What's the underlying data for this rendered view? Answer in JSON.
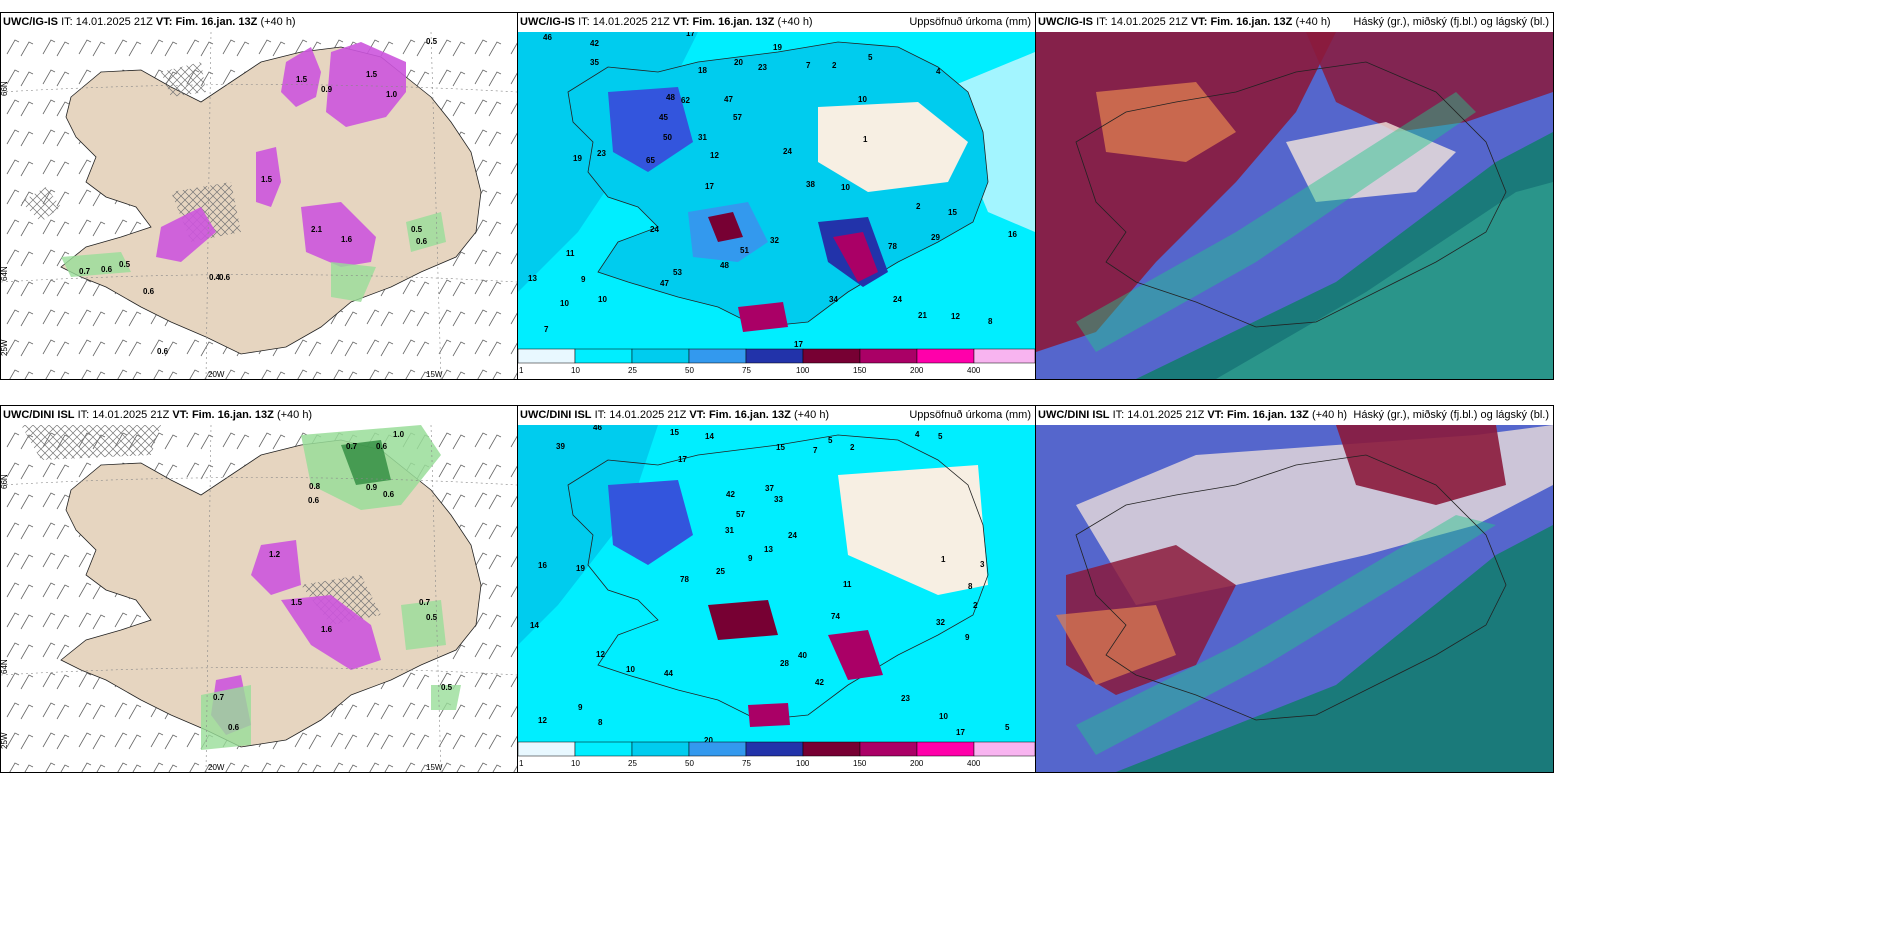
{
  "colors": {
    "land": "#e6d5c0",
    "ocean_light": "#e8f8ff",
    "cyan": "#00eeff",
    "sky": "#00ccee",
    "blue": "#3399ee",
    "medblue": "#3355dd",
    "darkblue": "#2233aa",
    "maroon": "#770033",
    "purple": "#aa0066",
    "magenta": "#ff00aa",
    "pink": "#f8b4f0",
    "precip_magenta": "#cc55dd",
    "precip_green": "#99dd99",
    "cloud_high": "#5566cc",
    "cloud_mid": "#8b1a3c",
    "cloud_low": "#1a7a7a",
    "cloud_orange": "#e08050"
  },
  "legend": {
    "ticks": [
      "1",
      "10",
      "25",
      "50",
      "75",
      "100",
      "150",
      "200",
      "400"
    ]
  },
  "rows": [
    {
      "model": "UWC/IG-IS",
      "it_label": "IT:",
      "it_value": "14.01.2025 21Z",
      "vt_label": "VT:",
      "vt_value": "Fim. 16.jan. 13Z",
      "lead": "(+40 h)",
      "precip_title": "Uppsöfnuð úrkoma (mm)",
      "cloud_title": "Háský (gr.), miðský (fj.bl.) og lágský (bl.)",
      "lat_labels": [
        "66N",
        "64N",
        "25W"
      ],
      "lon_labels": [
        "20W",
        "15W"
      ],
      "panel1_values": [
        "0.5",
        "1.5",
        "1.0",
        "1.5",
        "0.9",
        "1.5",
        "2.1",
        "1.6",
        "0.7",
        "0.6",
        "0.5",
        "0.6",
        "0.6",
        "0.5",
        "0.6",
        "0.4",
        "0.6"
      ],
      "panel2_values": [
        "46",
        "42",
        "35",
        "17",
        "19",
        "20",
        "23",
        "7",
        "2",
        "5",
        "4",
        "18",
        "47",
        "57",
        "31",
        "10",
        "12",
        "23",
        "24",
        "19",
        "65",
        "48",
        "50",
        "45",
        "62",
        "17",
        "38",
        "10",
        "1",
        "2",
        "24",
        "32",
        "51",
        "53",
        "47",
        "48",
        "34",
        "13",
        "11",
        "9",
        "10",
        "10",
        "7",
        "16",
        "24",
        "21",
        "12",
        "8",
        "17",
        "78",
        "29",
        "15"
      ]
    },
    {
      "model": "UWC/DINI ISL",
      "it_label": "IT:",
      "it_value": "14.01.2025 21Z",
      "vt_label": "VT:",
      "vt_value": "Fim. 16.jan. 13Z",
      "lead": "(+40 h)",
      "precip_title": "Uppsöfnuð úrkoma (mm)",
      "cloud_title": "Háský (gr.), miðský (fj.bl.) og lágský (bl.)",
      "lat_labels": [
        "66N",
        "64N",
        "25W"
      ],
      "lon_labels": [
        "20W",
        "15W"
      ],
      "panel1_values": [
        "1.0",
        "0.7",
        "0.6",
        "0.8",
        "0.6",
        "0.9",
        "0.6",
        "1.2",
        "1.5",
        "1.6",
        "0.7",
        "0.5",
        "0.5",
        "0.7",
        "0.6"
      ],
      "panel2_values": [
        "46",
        "15",
        "14",
        "15",
        "39",
        "17",
        "7",
        "5",
        "2",
        "4",
        "5",
        "37",
        "42",
        "57",
        "31",
        "33",
        "24",
        "19",
        "16",
        "25",
        "78",
        "9",
        "13",
        "11",
        "74",
        "28",
        "40",
        "42",
        "44",
        "12",
        "14",
        "10",
        "12",
        "9",
        "8",
        "20",
        "23",
        "10",
        "17",
        "5",
        "9",
        "8",
        "32",
        "1",
        "3",
        "2"
      ]
    }
  ]
}
